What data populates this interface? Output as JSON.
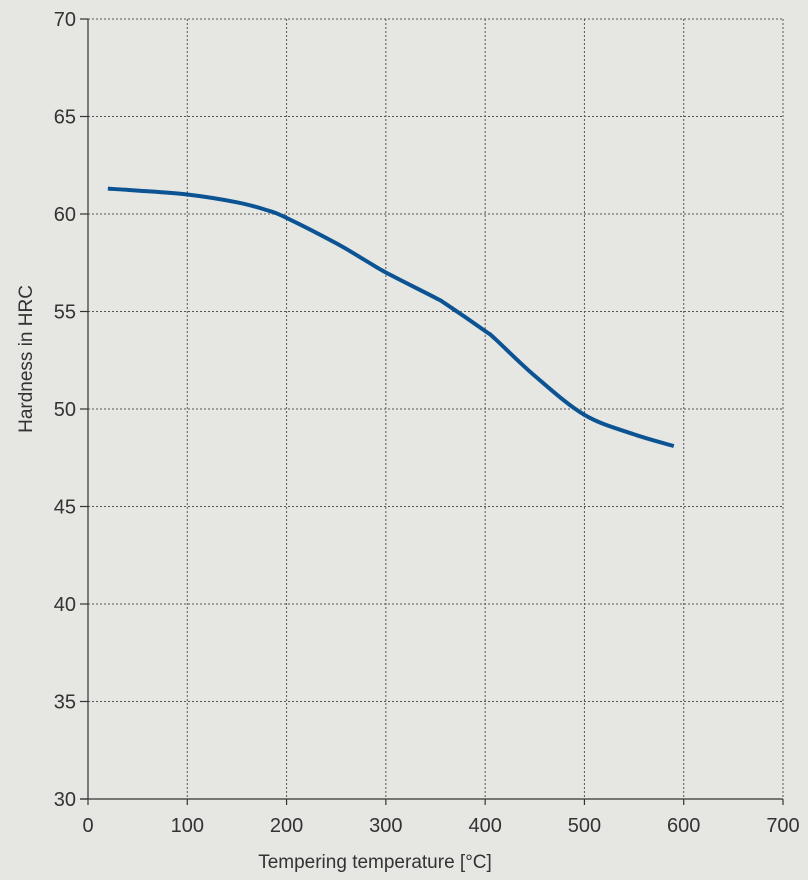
{
  "chart_data": {
    "type": "line",
    "title": "",
    "xlabel": "Tempering temperature [°C]",
    "ylabel": "Hardness in HRC",
    "xlim": [
      0,
      700
    ],
    "ylim": [
      30,
      70
    ],
    "xticks": [
      0,
      100,
      200,
      300,
      400,
      500,
      600,
      700
    ],
    "yticks": [
      30,
      35,
      40,
      45,
      50,
      55,
      60,
      65,
      70
    ],
    "grid": true,
    "grid_style": "dotted",
    "legend": "none",
    "colors": {
      "background": "#e6e6e3",
      "line": "#0c5394",
      "axis": "#333333",
      "grid": "#555555"
    },
    "series": [
      {
        "x": [
          20,
          50,
          100,
          150,
          180,
          200,
          250,
          280,
          300,
          350,
          360,
          400,
          410,
          450,
          500,
          550,
          590
        ],
        "y": [
          61.3,
          61.2,
          61.0,
          60.6,
          60.2,
          59.8,
          58.5,
          57.6,
          57.0,
          55.7,
          55.4,
          54.0,
          53.6,
          51.7,
          49.7,
          48.7,
          48.1
        ]
      }
    ]
  }
}
